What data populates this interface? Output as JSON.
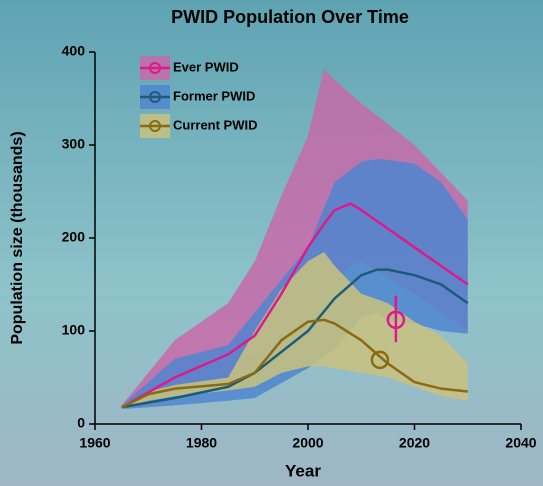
{
  "chart_data": {
    "type": "line-band",
    "title": "PWID Population Over Time",
    "xlabel": "Year",
    "ylabel": "Population size (thousands)",
    "xlim": [
      1960,
      2040
    ],
    "ylim": [
      0,
      400
    ],
    "xticks": [
      1960,
      1980,
      2000,
      2020,
      2040
    ],
    "yticks": [
      0,
      100,
      200,
      300,
      400
    ],
    "grid": false,
    "legend": "upper-left",
    "series": [
      {
        "name": "Ever PWID",
        "color": "#e0198a",
        "band_color": "#c76aa9",
        "x": [
          1965,
          1975,
          1985,
          1990,
          1995,
          2000,
          2003,
          2005,
          2008,
          2010,
          2020,
          2030
        ],
        "values": [
          18,
          50,
          75,
          95,
          140,
          190,
          215,
          230,
          237,
          230,
          190,
          150
        ],
        "upper": [
          20,
          90,
          130,
          175,
          245,
          310,
          382,
          370,
          355,
          345,
          300,
          240
        ],
        "lower": [
          16,
          35,
          50,
          60,
          80,
          110,
          140,
          155,
          170,
          175,
          140,
          100
        ],
        "point": {
          "x": 2016.5,
          "y": 112,
          "low": 88,
          "high": 138
        }
      },
      {
        "name": "Former PWID",
        "color": "#1d5b78",
        "band_color": "#4f86cf",
        "x": [
          1965,
          1975,
          1985,
          1990,
          2000,
          2005,
          2010,
          2013,
          2015,
          2020,
          2025,
          2030
        ],
        "values": [
          18,
          28,
          40,
          55,
          100,
          135,
          160,
          166,
          166,
          160,
          150,
          130
        ],
        "upper": [
          20,
          70,
          85,
          120,
          190,
          260,
          282,
          285,
          284,
          280,
          260,
          220
        ],
        "lower": [
          16,
          20,
          25,
          28,
          60,
          80,
          115,
          120,
          110,
          108,
          100,
          97
        ]
      },
      {
        "name": "Current PWID",
        "color": "#8a6a12",
        "band_color": "#c9c27e",
        "x": [
          1965,
          1970,
          1975,
          1985,
          1990,
          1995,
          2000,
          2003,
          2005,
          2010,
          2015,
          2020,
          2025,
          2030
        ],
        "values": [
          18,
          32,
          38,
          43,
          55,
          90,
          110,
          112,
          108,
          90,
          65,
          45,
          38,
          35
        ],
        "upper": [
          20,
          35,
          42,
          50,
          100,
          145,
          175,
          185,
          170,
          140,
          130,
          110,
          95,
          65
        ],
        "lower": [
          16,
          25,
          30,
          36,
          40,
          55,
          62,
          62,
          60,
          55,
          50,
          40,
          30,
          25
        ],
        "point": {
          "x": 2013.5,
          "y": 69
        }
      }
    ]
  }
}
